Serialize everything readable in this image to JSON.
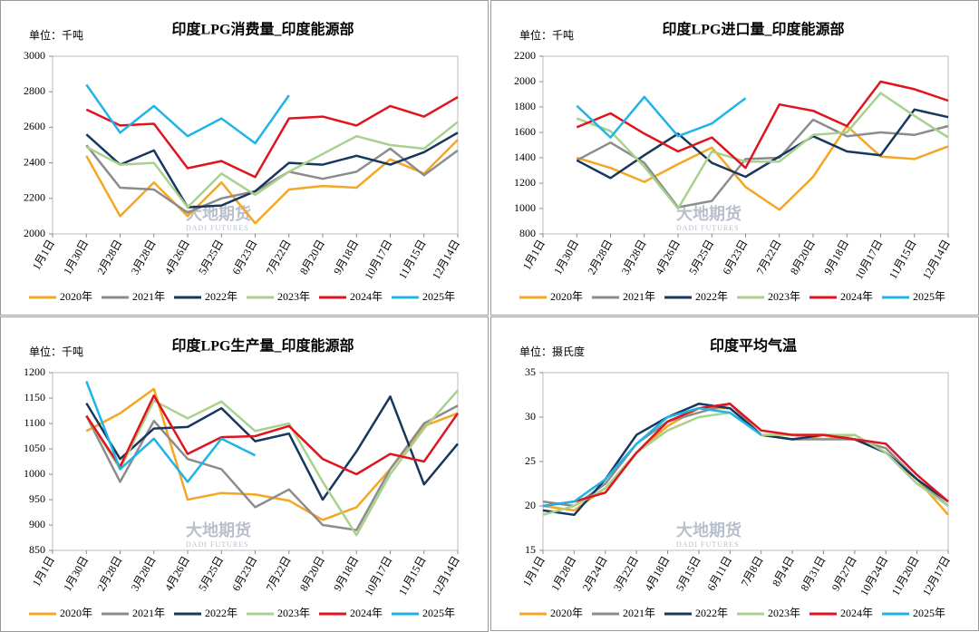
{
  "chart_data": [
    {
      "type": "line",
      "title": "印度LPG消费量_印度能源部",
      "unit": "单位：千吨",
      "watermark": "大地期货",
      "watermark_en": "DADI FUTURES",
      "categories": [
        "1月1日",
        "1月30日",
        "2月28日",
        "3月28日",
        "4月26日",
        "5月25日",
        "6月23日",
        "7月22日",
        "8月20日",
        "9月18日",
        "10月17日",
        "11月15日",
        "12月14日"
      ],
      "ylim": [
        2000,
        3000
      ],
      "yticks": [
        2000,
        2200,
        2400,
        2600,
        2800,
        3000
      ],
      "grid": false,
      "legend": "bottom",
      "series": [
        {
          "name": "2020年",
          "color": "#f5a623",
          "values": [
            null,
            2440,
            2100,
            2290,
            2100,
            2290,
            2060,
            2250,
            2270,
            2260,
            2420,
            2340,
            2530
          ]
        },
        {
          "name": "2021年",
          "color": "#8c8c8c",
          "values": [
            null,
            2500,
            2260,
            2250,
            2120,
            2200,
            2240,
            2350,
            2310,
            2350,
            2480,
            2330,
            2470
          ]
        },
        {
          "name": "2022年",
          "color": "#17375e",
          "values": [
            null,
            2560,
            2390,
            2470,
            2150,
            2160,
            2240,
            2400,
            2390,
            2440,
            2390,
            2460,
            2570
          ]
        },
        {
          "name": "2023年",
          "color": "#a9d18e",
          "values": [
            null,
            2490,
            2390,
            2400,
            2150,
            2340,
            2220,
            2350,
            2450,
            2550,
            2500,
            2480,
            2630
          ]
        },
        {
          "name": "2024年",
          "color": "#e0141e",
          "values": [
            null,
            2700,
            2610,
            2620,
            2370,
            2410,
            2320,
            2650,
            2660,
            2610,
            2720,
            2660,
            2770
          ]
        },
        {
          "name": "2025年",
          "color": "#1fb4e8",
          "values": [
            null,
            2840,
            2570,
            2720,
            2550,
            2650,
            2510,
            2780,
            null,
            null,
            null,
            null,
            null
          ]
        }
      ]
    },
    {
      "type": "line",
      "title": "印度LPG进口量_印度能源部",
      "unit": "单位：千吨",
      "watermark": "大地期货",
      "watermark_en": "DADI FUTURES",
      "categories": [
        "1月1日",
        "1月30日",
        "2月28日",
        "3月28日",
        "4月26日",
        "5月25日",
        "6月23日",
        "7月22日",
        "8月20日",
        "9月18日",
        "10月17日",
        "11月15日",
        "12月14日"
      ],
      "ylim": [
        800,
        2200
      ],
      "yticks": [
        800,
        1000,
        1200,
        1400,
        1600,
        1800,
        2000,
        2200
      ],
      "grid": false,
      "legend": "bottom",
      "series": [
        {
          "name": "2020年",
          "color": "#f5a623",
          "values": [
            null,
            1400,
            1320,
            1210,
            1350,
            1480,
            1170,
            990,
            1250,
            1650,
            1410,
            1390,
            1490
          ]
        },
        {
          "name": "2021年",
          "color": "#8c8c8c",
          "values": [
            null,
            1380,
            1520,
            1360,
            1010,
            1060,
            1390,
            1400,
            1700,
            1570,
            1600,
            1580,
            1650
          ]
        },
        {
          "name": "2022年",
          "color": "#17375e",
          "values": [
            null,
            1380,
            1240,
            1420,
            1590,
            1360,
            1250,
            1410,
            1570,
            1450,
            1420,
            1780,
            1720
          ]
        },
        {
          "name": "2023年",
          "color": "#a9d18e",
          "values": [
            null,
            1710,
            1610,
            1330,
            1000,
            1450,
            1370,
            1370,
            1580,
            1600,
            1910,
            1730,
            1560
          ]
        },
        {
          "name": "2024年",
          "color": "#e0141e",
          "values": [
            null,
            1640,
            1750,
            1590,
            1450,
            1560,
            1320,
            1820,
            1770,
            1650,
            2000,
            1940,
            1850
          ]
        },
        {
          "name": "2025年",
          "color": "#1fb4e8",
          "values": [
            null,
            1810,
            1560,
            1880,
            1570,
            1670,
            1870,
            null,
            null,
            null,
            null,
            null,
            null
          ]
        }
      ]
    },
    {
      "type": "line",
      "title": "印度LPG生产量_印度能源部",
      "unit": "单位：千吨",
      "watermark": "大地期货",
      "watermark_en": "DADI FUTURES",
      "categories": [
        "1月1日",
        "1月30日",
        "2月28日",
        "3月28日",
        "4月26日",
        "5月25日",
        "6月23日",
        "7月22日",
        "8月20日",
        "9月18日",
        "10月17日",
        "11月15日",
        "12月14日"
      ],
      "ylim": [
        850,
        1200
      ],
      "yticks": [
        850,
        900,
        950,
        1000,
        1050,
        1100,
        1150,
        1200
      ],
      "grid": false,
      "legend": "bottom",
      "series": [
        {
          "name": "2020年",
          "color": "#f5a623",
          "values": [
            null,
            1085,
            1120,
            1168,
            950,
            963,
            960,
            948,
            910,
            935,
            1010,
            1095,
            1120
          ]
        },
        {
          "name": "2021年",
          "color": "#8c8c8c",
          "values": [
            null,
            1115,
            985,
            1105,
            1030,
            1010,
            935,
            970,
            900,
            890,
            1010,
            1100,
            1135
          ]
        },
        {
          "name": "2022年",
          "color": "#17375e",
          "values": [
            null,
            1140,
            1030,
            1090,
            1093,
            1130,
            1065,
            1080,
            950,
            1045,
            1153,
            980,
            1060
          ]
        },
        {
          "name": "2023年",
          "color": "#a9d18e",
          "values": [
            null,
            1115,
            1010,
            1145,
            1110,
            1143,
            1085,
            1100,
            985,
            880,
            1000,
            1090,
            1165
          ]
        },
        {
          "name": "2024年",
          "color": "#e0141e",
          "values": [
            null,
            1115,
            1015,
            1155,
            1040,
            1073,
            1075,
            1095,
            1030,
            1000,
            1040,
            1025,
            1120
          ]
        },
        {
          "name": "2025年",
          "color": "#1fb4e8",
          "values": [
            null,
            1183,
            1010,
            1070,
            985,
            1070,
            1037,
            null,
            null,
            null,
            null,
            null,
            null
          ]
        }
      ]
    },
    {
      "type": "line",
      "title": "印度平均气温",
      "unit": "单位：摄氏度",
      "watermark": "大地期货",
      "watermark_en": "DADI FUTURES",
      "categories": [
        "1月1日",
        "1月28日",
        "2月24日",
        "3月22日",
        "4月18日",
        "5月15日",
        "6月11日",
        "7月8日",
        "8月4日",
        "8月31日",
        "9月27日",
        "10月24日",
        "11月20日",
        "12月17日"
      ],
      "ylim": [
        15,
        35
      ],
      "yticks": [
        15,
        20,
        25,
        30,
        35
      ],
      "grid": false,
      "legend": "bottom",
      "series": [
        {
          "name": "2020年",
          "color": "#f5a623",
          "values": [
            20,
            19.5,
            22,
            26,
            29,
            31,
            31,
            28,
            28,
            27.5,
            28,
            26,
            23,
            19
          ]
        },
        {
          "name": "2021年",
          "color": "#8c8c8c",
          "values": [
            20.5,
            20,
            22.5,
            27,
            29.5,
            30.5,
            31.5,
            28,
            27.5,
            27.5,
            27.5,
            26.5,
            23,
            20
          ]
        },
        {
          "name": "2022年",
          "color": "#17375e",
          "values": [
            19.5,
            19,
            23,
            28,
            30,
            31.5,
            31,
            28,
            27.5,
            28,
            27.5,
            26,
            23,
            20.5
          ]
        },
        {
          "name": "2023年",
          "color": "#a9d18e",
          "values": [
            19,
            20,
            22,
            26,
            28.5,
            30,
            30.5,
            28,
            28,
            28,
            28,
            26,
            22.5,
            20
          ]
        },
        {
          "name": "2024年",
          "color": "#e0141e",
          "values": [
            20,
            20.5,
            21.5,
            26,
            29.5,
            31,
            31.5,
            28.5,
            28,
            28,
            27.5,
            27,
            23.5,
            20.5
          ]
        },
        {
          "name": "2025年",
          "color": "#1fb4e8",
          "values": [
            20,
            20.5,
            23,
            27,
            30,
            31,
            30.5,
            28,
            null,
            null,
            null,
            null,
            null,
            null
          ]
        }
      ]
    }
  ]
}
